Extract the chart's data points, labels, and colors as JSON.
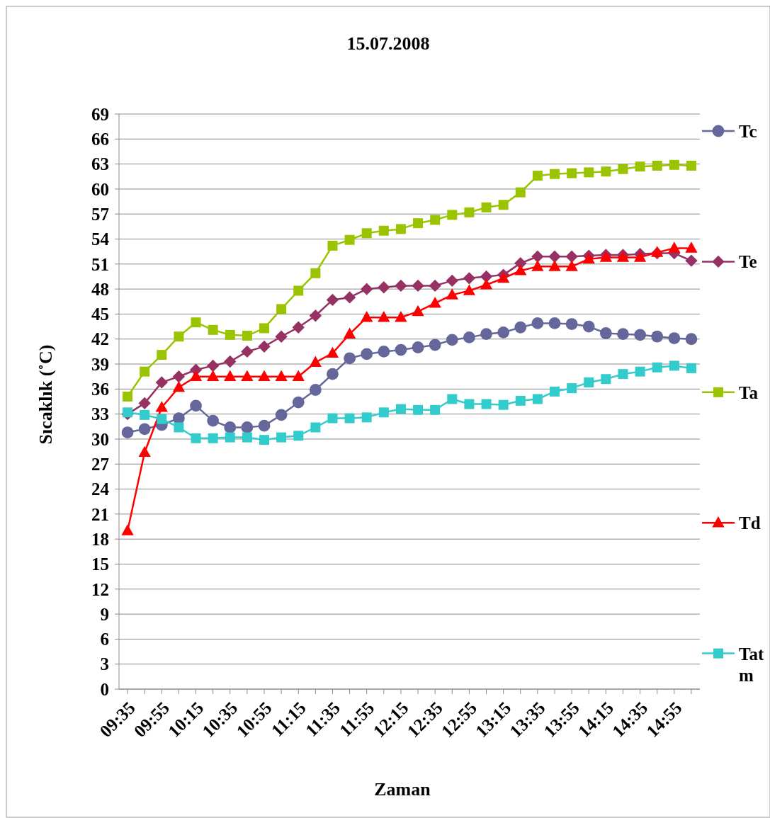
{
  "chart_data": {
    "type": "line",
    "title": "15.07.2008",
    "xlabel": "Zaman",
    "ylabel": "Sıcaklık (˚C)",
    "categories": [
      "09:35",
      null,
      "09:55",
      null,
      "10:15",
      null,
      "10:35",
      null,
      "10:55",
      null,
      "11:15",
      null,
      "11:35",
      null,
      "11:55",
      null,
      "12:15",
      null,
      "12:35",
      null,
      "12:55",
      null,
      "13:15",
      null,
      "13:35",
      null,
      "13:55",
      null,
      "14:15",
      null,
      "14:35",
      null,
      "14:55",
      null
    ],
    "ylim": [
      0,
      69
    ],
    "yticks": [
      0,
      3,
      6,
      9,
      12,
      15,
      18,
      21,
      24,
      27,
      30,
      33,
      36,
      39,
      42,
      45,
      48,
      51,
      54,
      57,
      60,
      63,
      66,
      69
    ],
    "grid": "y",
    "legend": "right",
    "line_style": "solid",
    "series": [
      {
        "name": "Tc",
        "color": "#65679b",
        "marker": "circle",
        "values": [
          30.8,
          31.2,
          31.7,
          32.5,
          34.0,
          32.2,
          31.4,
          31.4,
          31.6,
          32.9,
          34.4,
          35.9,
          37.8,
          39.7,
          40.2,
          40.5,
          40.7,
          41.0,
          41.3,
          41.9,
          42.2,
          42.6,
          42.8,
          43.4,
          43.9,
          43.9,
          43.8,
          43.5,
          42.7,
          42.6,
          42.5,
          42.3,
          42.1,
          42.0
        ]
      },
      {
        "name": "Te",
        "color": "#953163",
        "marker": "diamond",
        "values": [
          33.0,
          34.3,
          36.8,
          37.5,
          38.3,
          38.8,
          39.3,
          40.5,
          41.1,
          42.3,
          43.4,
          44.8,
          46.7,
          47.0,
          48.0,
          48.2,
          48.4,
          48.4,
          48.4,
          49.0,
          49.3,
          49.5,
          49.7,
          51.1,
          51.9,
          51.9,
          51.9,
          52.0,
          52.1,
          52.1,
          52.2,
          52.3,
          52.3,
          51.4
        ]
      },
      {
        "name": "Ta",
        "color": "#9bc400",
        "marker": "square",
        "values": [
          35.1,
          38.1,
          40.1,
          42.3,
          44.0,
          43.1,
          42.5,
          42.4,
          43.3,
          45.6,
          47.8,
          49.9,
          53.2,
          53.9,
          54.7,
          55.0,
          55.2,
          55.9,
          56.3,
          56.9,
          57.2,
          57.8,
          58.1,
          59.6,
          61.6,
          61.8,
          61.9,
          62.0,
          62.1,
          62.4,
          62.7,
          62.8,
          62.9,
          62.8
        ]
      },
      {
        "name": "Td",
        "color": "#ff0000",
        "marker": "triangle",
        "values": [
          19.0,
          28.4,
          33.8,
          36.2,
          37.5,
          37.5,
          37.5,
          37.5,
          37.5,
          37.5,
          37.5,
          39.2,
          40.3,
          42.6,
          44.6,
          44.6,
          44.6,
          45.3,
          46.3,
          47.3,
          47.8,
          48.5,
          49.3,
          50.2,
          50.7,
          50.7,
          50.7,
          51.6,
          51.8,
          51.8,
          51.8,
          52.4,
          52.9,
          52.9
        ]
      },
      {
        "name": "Tatm",
        "color": "#33cccc",
        "marker": "square",
        "values": [
          33.2,
          32.9,
          32.4,
          31.4,
          30.1,
          30.1,
          30.2,
          30.2,
          29.9,
          30.2,
          30.4,
          31.4,
          32.5,
          32.5,
          32.6,
          33.2,
          33.6,
          33.5,
          33.5,
          34.8,
          34.2,
          34.2,
          34.1,
          34.6,
          34.8,
          35.7,
          36.1,
          36.8,
          37.2,
          37.8,
          38.1,
          38.6,
          38.8,
          38.5
        ]
      }
    ]
  }
}
